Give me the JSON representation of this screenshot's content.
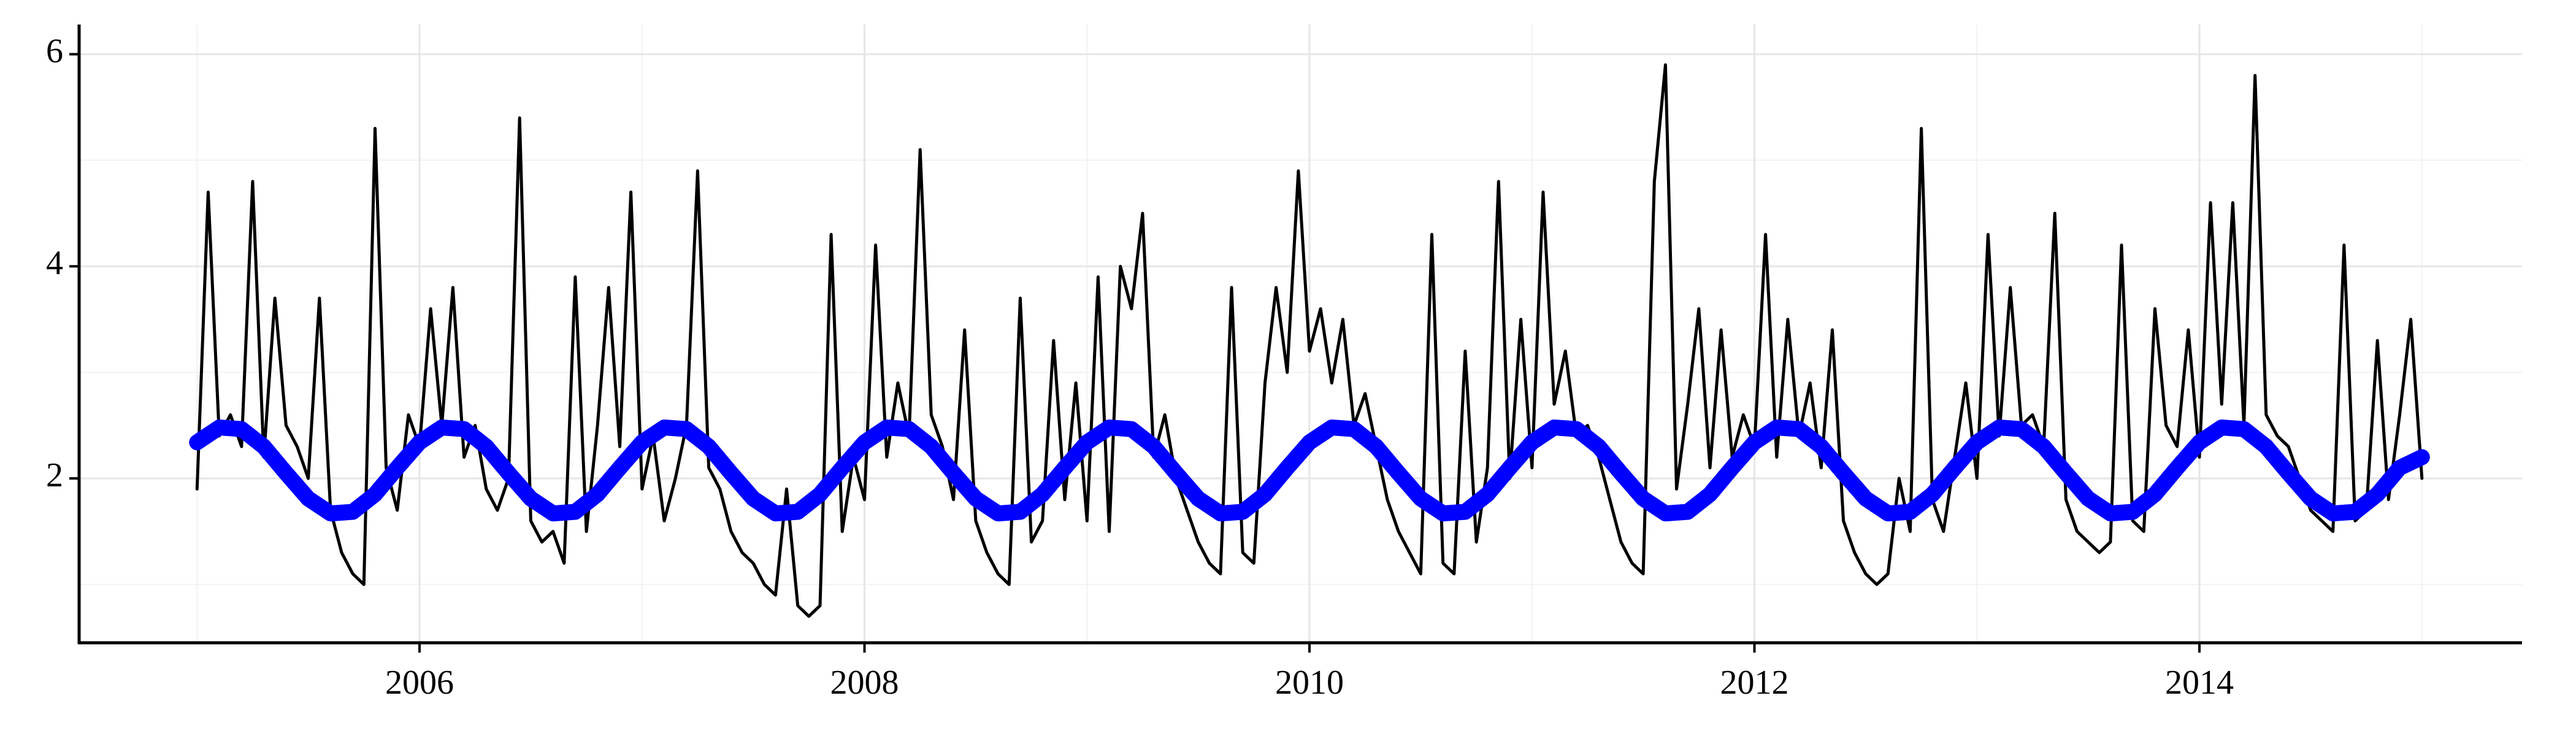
{
  "chart_data": {
    "type": "line",
    "xlim": [
      2004.47,
      2015.45
    ],
    "xticks": [
      2006,
      2008,
      2010,
      2012,
      2014
    ],
    "x_minor_grid": [
      2005,
      2007,
      2009,
      2011,
      2013,
      2015
    ],
    "ylim": [
      0.45,
      6.28
    ],
    "yticks": [
      2,
      4,
      6
    ],
    "y_minor_grid": [
      1,
      3,
      5
    ],
    "grid": true,
    "series": [
      {
        "color": "#000000",
        "x": [
          2005.0,
          2005.05,
          2005.1,
          2005.15,
          2005.2,
          2005.25,
          2005.3,
          2005.35,
          2005.4,
          2005.45,
          2005.5,
          2005.55,
          2005.6,
          2005.65,
          2005.7,
          2005.75,
          2005.8,
          2005.85,
          2005.9,
          2005.95,
          2006.0,
          2006.05,
          2006.1,
          2006.15,
          2006.2,
          2006.25,
          2006.3,
          2006.35,
          2006.4,
          2006.45,
          2006.5,
          2006.55,
          2006.6,
          2006.65,
          2006.7,
          2006.75,
          2006.8,
          2006.85,
          2006.9,
          2006.95,
          2007.0,
          2007.05,
          2007.1,
          2007.15,
          2007.2,
          2007.25,
          2007.3,
          2007.35,
          2007.4,
          2007.45,
          2007.5,
          2007.55,
          2007.6,
          2007.65,
          2007.7,
          2007.75,
          2007.8,
          2007.85,
          2007.9,
          2007.95,
          2008.0,
          2008.05,
          2008.1,
          2008.15,
          2008.2,
          2008.25,
          2008.3,
          2008.35,
          2008.4,
          2008.45,
          2008.5,
          2008.55,
          2008.6,
          2008.65,
          2008.7,
          2008.75,
          2008.8,
          2008.85,
          2008.9,
          2008.95,
          2009.0,
          2009.05,
          2009.1,
          2009.15,
          2009.2,
          2009.25,
          2009.3,
          2009.35,
          2009.4,
          2009.45,
          2009.5,
          2009.55,
          2009.6,
          2009.65,
          2009.7,
          2009.75,
          2009.8,
          2009.85,
          2009.9,
          2009.95,
          2010.0,
          2010.05,
          2010.1,
          2010.15,
          2010.2,
          2010.25,
          2010.3,
          2010.35,
          2010.4,
          2010.45,
          2010.5,
          2010.55,
          2010.6,
          2010.65,
          2010.7,
          2010.75,
          2010.8,
          2010.85,
          2010.9,
          2010.95,
          2011.0,
          2011.05,
          2011.1,
          2011.15,
          2011.2,
          2011.25,
          2011.3,
          2011.35,
          2011.4,
          2011.45,
          2011.5,
          2011.55,
          2011.6,
          2011.65,
          2011.7,
          2011.75,
          2011.8,
          2011.85,
          2011.9,
          2011.95,
          2012.0,
          2012.05,
          2012.1,
          2012.15,
          2012.2,
          2012.25,
          2012.3,
          2012.35,
          2012.4,
          2012.45,
          2012.5,
          2012.55,
          2012.6,
          2012.65,
          2012.7,
          2012.75,
          2012.8,
          2012.85,
          2012.9,
          2012.95,
          2013.0,
          2013.05,
          2013.1,
          2013.15,
          2013.2,
          2013.25,
          2013.3,
          2013.35,
          2013.4,
          2013.45,
          2013.5,
          2013.55,
          2013.6,
          2013.65,
          2013.7,
          2013.75,
          2013.8,
          2013.85,
          2013.9,
          2013.95,
          2014.0,
          2014.05,
          2014.1,
          2014.15,
          2014.2,
          2014.25,
          2014.3,
          2014.35,
          2014.4,
          2014.45,
          2014.5,
          2014.55,
          2014.6,
          2014.65,
          2014.7,
          2014.75,
          2014.8,
          2014.85,
          2014.9,
          2014.95,
          2015.0
        ],
        "values": [
          1.9,
          4.7,
          2.4,
          2.6,
          2.3,
          4.8,
          2.2,
          3.7,
          2.5,
          2.3,
          2.0,
          3.7,
          1.7,
          1.3,
          1.1,
          1.0,
          5.3,
          2.1,
          1.7,
          2.6,
          2.3,
          3.6,
          2.5,
          3.8,
          2.2,
          2.5,
          1.9,
          1.7,
          2.0,
          5.4,
          1.6,
          1.4,
          1.5,
          1.2,
          3.9,
          1.5,
          2.5,
          3.8,
          2.3,
          4.7,
          1.9,
          2.4,
          1.6,
          2.0,
          2.5,
          4.9,
          2.1,
          1.9,
          1.5,
          1.3,
          1.2,
          1.0,
          0.9,
          1.9,
          0.8,
          0.7,
          0.8,
          4.3,
          1.5,
          2.2,
          1.8,
          4.2,
          2.2,
          2.9,
          2.4,
          5.1,
          2.6,
          2.3,
          1.8,
          3.4,
          1.6,
          1.3,
          1.1,
          1.0,
          3.7,
          1.4,
          1.6,
          3.3,
          1.8,
          2.9,
          1.6,
          3.9,
          1.5,
          4.0,
          3.6,
          4.5,
          2.2,
          2.6,
          2.0,
          1.7,
          1.4,
          1.2,
          1.1,
          3.8,
          1.3,
          1.2,
          2.9,
          3.8,
          3.0,
          4.9,
          3.2,
          3.6,
          2.9,
          3.5,
          2.5,
          2.8,
          2.3,
          1.8,
          1.5,
          1.3,
          1.1,
          4.3,
          1.2,
          1.1,
          3.2,
          1.4,
          2.1,
          4.8,
          2.0,
          3.5,
          2.1,
          4.7,
          2.7,
          3.2,
          2.4,
          2.5,
          2.2,
          1.8,
          1.4,
          1.2,
          1.1,
          4.8,
          5.9,
          1.9,
          2.7,
          3.6,
          2.1,
          3.4,
          2.2,
          2.6,
          2.3,
          4.3,
          2.2,
          3.5,
          2.4,
          2.9,
          2.1,
          3.4,
          1.6,
          1.3,
          1.1,
          1.0,
          1.1,
          2.0,
          1.5,
          5.3,
          1.8,
          1.5,
          2.2,
          2.9,
          2.0,
          4.3,
          2.4,
          3.8,
          2.5,
          2.6,
          2.3,
          4.5,
          1.8,
          1.5,
          1.4,
          1.3,
          1.4,
          4.2,
          1.6,
          1.5,
          3.6,
          2.5,
          2.3,
          3.4,
          2.2,
          4.6,
          2.7,
          4.6,
          2.5,
          5.8,
          2.6,
          2.4,
          2.3,
          2.0,
          1.7,
          1.6,
          1.5,
          4.2,
          1.6,
          1.7,
          3.3,
          1.8,
          2.6,
          3.5,
          2.0
        ],
        "line_width": 5
      },
      {
        "color": "#0000ff",
        "x": [
          2005.0,
          2005.1,
          2005.2,
          2005.3,
          2005.4,
          2005.5,
          2005.6,
          2005.7,
          2005.8,
          2005.9,
          2006.0,
          2006.1,
          2006.2,
          2006.3,
          2006.4,
          2006.5,
          2006.6,
          2006.7,
          2006.8,
          2006.9,
          2007.0,
          2007.1,
          2007.2,
          2007.3,
          2007.4,
          2007.5,
          2007.6,
          2007.7,
          2007.8,
          2007.9,
          2008.0,
          2008.1,
          2008.2,
          2008.3,
          2008.4,
          2008.5,
          2008.6,
          2008.7,
          2008.8,
          2008.9,
          2009.0,
          2009.1,
          2009.2,
          2009.3,
          2009.4,
          2009.5,
          2009.6,
          2009.7,
          2009.8,
          2009.9,
          2010.0,
          2010.1,
          2010.2,
          2010.3,
          2010.4,
          2010.5,
          2010.6,
          2010.7,
          2010.8,
          2010.9,
          2011.0,
          2011.1,
          2011.2,
          2011.3,
          2011.4,
          2011.5,
          2011.6,
          2011.7,
          2011.8,
          2011.9,
          2012.0,
          2012.1,
          2012.2,
          2012.3,
          2012.4,
          2012.5,
          2012.6,
          2012.7,
          2012.8,
          2012.9,
          2013.0,
          2013.1,
          2013.2,
          2013.3,
          2013.4,
          2013.5,
          2013.6,
          2013.7,
          2013.8,
          2013.9,
          2014.0,
          2014.1,
          2014.2,
          2014.3,
          2014.4,
          2014.5,
          2014.6,
          2014.7,
          2014.8,
          2014.9,
          2015.0
        ],
        "values": [
          2.34,
          2.48,
          2.465,
          2.3,
          2.05,
          1.81,
          1.67,
          1.685,
          1.85,
          2.1,
          2.34,
          2.48,
          2.465,
          2.3,
          2.05,
          1.81,
          1.67,
          1.685,
          1.85,
          2.1,
          2.34,
          2.48,
          2.465,
          2.3,
          2.05,
          1.81,
          1.67,
          1.685,
          1.85,
          2.1,
          2.34,
          2.48,
          2.465,
          2.3,
          2.05,
          1.81,
          1.67,
          1.685,
          1.85,
          2.1,
          2.34,
          2.48,
          2.465,
          2.3,
          2.05,
          1.81,
          1.67,
          1.685,
          1.85,
          2.1,
          2.34,
          2.48,
          2.465,
          2.3,
          2.05,
          1.81,
          1.67,
          1.685,
          1.85,
          2.1,
          2.34,
          2.48,
          2.465,
          2.3,
          2.05,
          1.81,
          1.67,
          1.685,
          1.85,
          2.1,
          2.34,
          2.48,
          2.465,
          2.3,
          2.05,
          1.81,
          1.67,
          1.685,
          1.85,
          2.1,
          2.34,
          2.48,
          2.465,
          2.3,
          2.05,
          1.81,
          1.67,
          1.685,
          1.85,
          2.1,
          2.34,
          2.48,
          2.465,
          2.3,
          2.05,
          1.81,
          1.67,
          1.685,
          1.85,
          2.1,
          2.2
        ],
        "line_width": 26
      }
    ]
  }
}
